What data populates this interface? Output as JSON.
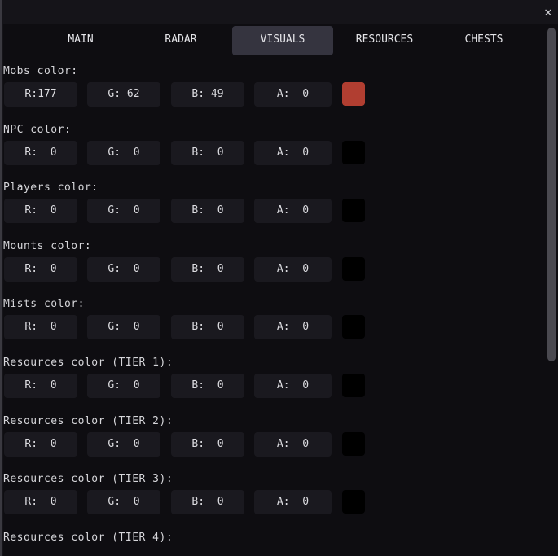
{
  "window": {
    "close_icon": "close-icon"
  },
  "tabs": [
    {
      "label": "MAIN",
      "active": false
    },
    {
      "label": "RADAR",
      "active": false
    },
    {
      "label": "VISUALS",
      "active": true
    },
    {
      "label": "RESOURCES",
      "active": false
    },
    {
      "label": "CHESTS",
      "active": false
    }
  ],
  "sections": [
    {
      "label": "Mobs color:",
      "r": "R:177",
      "g": "G: 62",
      "b": "B: 49",
      "a": "A:  0",
      "swatch": "#b13e31"
    },
    {
      "label": "NPC color:",
      "r": "R:  0",
      "g": "G:  0",
      "b": "B:  0",
      "a": "A:  0",
      "swatch": "#000000"
    },
    {
      "label": "Players color:",
      "r": "R:  0",
      "g": "G:  0",
      "b": "B:  0",
      "a": "A:  0",
      "swatch": "#000000"
    },
    {
      "label": "Mounts color:",
      "r": "R:  0",
      "g": "G:  0",
      "b": "B:  0",
      "a": "A:  0",
      "swatch": "#000000"
    },
    {
      "label": "Mists color:",
      "r": "R:  0",
      "g": "G:  0",
      "b": "B:  0",
      "a": "A:  0",
      "swatch": "#000000"
    },
    {
      "label": "Resources color (TIER 1):",
      "r": "R:  0",
      "g": "G:  0",
      "b": "B:  0",
      "a": "A:  0",
      "swatch": "#000000"
    },
    {
      "label": "Resources color (TIER 2):",
      "r": "R:  0",
      "g": "G:  0",
      "b": "B:  0",
      "a": "A:  0",
      "swatch": "#000000"
    },
    {
      "label": "Resources color (TIER 3):",
      "r": "R:  0",
      "g": "G:  0",
      "b": "B:  0",
      "a": "A:  0",
      "swatch": "#000000"
    },
    {
      "label": "Resources color (TIER 4):"
    }
  ]
}
